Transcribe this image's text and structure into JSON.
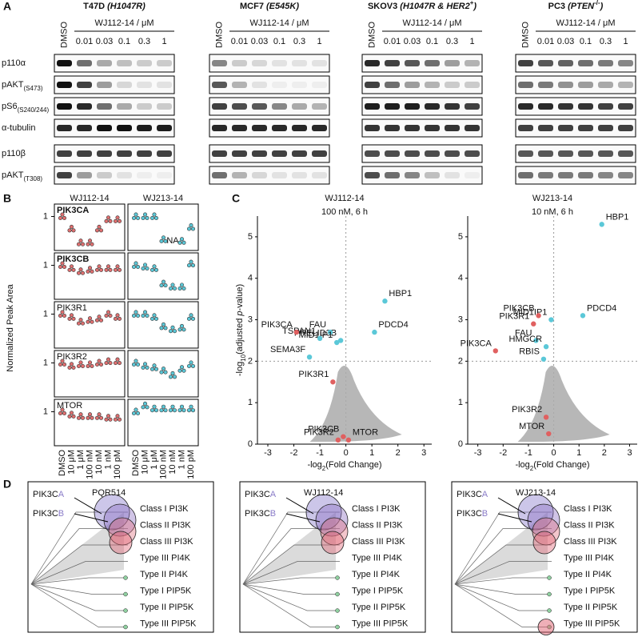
{
  "panel_a": {
    "label": "A",
    "treatment": "WJ112-14 / μM",
    "dmso": "DMSO",
    "doses": [
      "0.01",
      "0.03",
      "0.1",
      "0.3",
      "1"
    ],
    "proteins": [
      [
        {
          "text": "p110α"
        }
      ],
      [
        {
          "text": "pAKT"
        },
        {
          "text": "(S473)",
          "sub": true
        }
      ],
      [
        {
          "text": "pS6"
        },
        {
          "text": "(S240/244)",
          "sub": true
        }
      ],
      [
        {
          "text": "α-tubulin"
        }
      ],
      [
        {
          "text": "p110β"
        }
      ],
      [
        {
          "text": "pAKT"
        },
        {
          "text": "(T308)",
          "sub": true
        }
      ]
    ],
    "cell_lines": [
      {
        "title": [
          {
            "text": "T47D "
          },
          {
            "text": "(H1047R)",
            "italic": true
          }
        ],
        "band_intensity": [
          [
            1,
            0.6,
            0.35,
            0.25,
            0.2,
            0.2
          ],
          [
            1,
            0.8,
            0.4,
            0.15,
            0.1,
            0.1
          ],
          [
            1,
            0.9,
            0.6,
            0.35,
            0.2,
            0.2
          ],
          [
            0.9,
            0.9,
            1,
            1,
            0.95,
            0.95
          ],
          [
            0.8,
            0.8,
            0.8,
            0.8,
            0.8,
            0.8
          ],
          [
            0.8,
            0.4,
            0.2,
            0.1,
            0.05,
            0.05
          ]
        ]
      },
      {
        "title": [
          {
            "text": "MCF7 "
          },
          {
            "text": "(E545K)",
            "italic": true
          }
        ],
        "band_intensity": [
          [
            0.5,
            0.2,
            0.15,
            0.1,
            0.1,
            0.1
          ],
          [
            0.7,
            0.3,
            0.1,
            0.05,
            0.05,
            0.05
          ],
          [
            0.8,
            0.75,
            0.7,
            0.5,
            0.35,
            0.3
          ],
          [
            0.9,
            0.9,
            0.9,
            0.9,
            0.9,
            0.9
          ],
          [
            0.8,
            0.8,
            0.8,
            0.8,
            0.8,
            0.8
          ],
          [
            0.6,
            0.3,
            0.15,
            0.1,
            0.1,
            0.1
          ]
        ]
      },
      {
        "title": [
          {
            "text": "SKOV3 "
          },
          {
            "text": "(H1047R & HER2",
            "italic": true
          },
          {
            "text": "+",
            "sup": true
          },
          {
            "text": ")",
            "italic": true
          }
        ],
        "band_intensity": [
          [
            0.9,
            0.8,
            0.7,
            0.6,
            0.4,
            0.3
          ],
          [
            0.8,
            0.6,
            0.4,
            0.3,
            0.2,
            0.2
          ],
          [
            0.95,
            0.95,
            0.95,
            0.9,
            0.85,
            0.8
          ],
          [
            0.85,
            0.85,
            0.85,
            0.85,
            0.85,
            0.85
          ],
          [
            0.75,
            0.75,
            0.75,
            0.75,
            0.75,
            0.75
          ],
          [
            0.75,
            0.6,
            0.5,
            0.25,
            0.1,
            0.05
          ]
        ]
      },
      {
        "title": [
          {
            "text": "PC3 "
          },
          {
            "text": "(PTEN",
            "italic": true
          },
          {
            "text": "-/-",
            "sup": true
          },
          {
            "text": ")",
            "italic": true
          }
        ],
        "band_intensity": [
          [
            0.8,
            0.7,
            0.65,
            0.6,
            0.55,
            0.5
          ],
          [
            0.6,
            0.55,
            0.45,
            0.4,
            0.35,
            0.3
          ],
          [
            0.9,
            0.9,
            0.85,
            0.85,
            0.8,
            0.8
          ],
          [
            0.8,
            0.8,
            0.8,
            0.8,
            0.8,
            0.8
          ],
          [
            0.7,
            0.7,
            0.7,
            0.7,
            0.7,
            0.7
          ],
          [
            0.6,
            0.55,
            0.55,
            0.55,
            0.5,
            0.5
          ]
        ]
      }
    ]
  },
  "panel_b": {
    "label": "B",
    "ylabel": "Normalized Peak Area",
    "ylim": [
      0,
      1.3
    ],
    "yticks": [
      1
    ],
    "na_label": "NA",
    "categories": [
      "DMSO",
      "10 μM",
      "1 μM",
      "100 nM",
      "10 nM",
      "1 nM",
      "100 pM"
    ],
    "compounds": [
      {
        "name": "WJ112-14",
        "color": "#e07070"
      },
      {
        "name": "WJ213-14",
        "color": "#5bc8d8"
      }
    ],
    "genes": [
      {
        "name": "PIK3CA",
        "bold": true,
        "values": [
          [
            1,
            0.6,
            0.15,
            0.15,
            0.6,
            0.9,
            0.9
          ],
          [
            1,
            1,
            1,
            0.25,
            null,
            0.2,
            0.65
          ]
        ]
      },
      {
        "name": "PIK3CB",
        "bold": true,
        "values": [
          [
            1,
            0.9,
            0.8,
            0.85,
            0.9,
            0.9,
            0.9
          ],
          [
            1,
            0.95,
            0.9,
            0.4,
            0.3,
            0.3,
            1.05
          ]
        ]
      },
      {
        "name": "PIK3R1",
        "bold": false,
        "values": [
          [
            1,
            0.9,
            0.75,
            0.8,
            0.85,
            1,
            0.9
          ],
          [
            1,
            1,
            0.9,
            0.6,
            0.5,
            0.55,
            0.9
          ]
        ]
      },
      {
        "name": "PIK3R2",
        "bold": false,
        "values": [
          [
            1,
            0.9,
            0.95,
            0.95,
            1,
            1.05,
            1.05
          ],
          [
            1,
            0.9,
            0.85,
            0.75,
            0.6,
            0.8,
            0.95
          ]
        ]
      },
      {
        "name": "MTOR",
        "bold": false,
        "values": [
          [
            1,
            0.9,
            0.85,
            0.85,
            0.85,
            0.8,
            0.8
          ],
          [
            1,
            1.2,
            1.1,
            1.1,
            1.1,
            1.1,
            1.1
          ]
        ]
      }
    ]
  },
  "panel_c": {
    "label": "C",
    "xlabel": [
      {
        "text": "-log"
      },
      {
        "text": "2",
        "sub": true
      },
      {
        "text": "(Fold Change)"
      }
    ],
    "ylabel": [
      {
        "text": "-log"
      },
      {
        "text": "10",
        "sub": true
      },
      {
        "text": "(adjusted "
      },
      {
        "text": "p",
        "italic": true
      },
      {
        "text": "-value)"
      }
    ],
    "xlim": [
      -3.4,
      3.3
    ],
    "ylim": [
      0,
      5.5
    ],
    "xticks": [
      -3,
      -2,
      -1,
      0,
      1,
      2,
      3
    ],
    "yticks": [
      0,
      1,
      2,
      3,
      4,
      5
    ],
    "hline": 2,
    "vline": 0,
    "plots": [
      {
        "title": "WJ112-14",
        "subtitle": "100 nM, 6 h",
        "points": [
          {
            "name": "HBP1",
            "x": 1.5,
            "y": 3.45,
            "color": "#5bc8d8"
          },
          {
            "name": "PDCD4",
            "x": 1.1,
            "y": 2.7,
            "color": "#5bc8d8"
          },
          {
            "name": "PRELID3B",
            "x": -0.2,
            "y": 2.5,
            "color": "#5bc8d8"
          },
          {
            "name": "FAU",
            "x": -0.6,
            "y": 2.7,
            "color": "#5bc8d8"
          },
          {
            "name": "MID1IP1",
            "x": -0.35,
            "y": 2.45,
            "color": "#5bc8d8"
          },
          {
            "name": "TSPAN1",
            "x": -1.0,
            "y": 2.55,
            "color": "#5bc8d8"
          },
          {
            "name": "PIK3CA",
            "x": -1.9,
            "y": 2.7,
            "color": "#e06060"
          },
          {
            "name": "SEMA3F",
            "x": -1.4,
            "y": 2.1,
            "color": "#5bc8d8"
          },
          {
            "name": "PIK3R1",
            "x": -0.5,
            "y": 1.5,
            "color": "#e06060"
          },
          {
            "name": "PIK3CB",
            "x": -0.1,
            "y": 0.18,
            "color": "#e06060"
          },
          {
            "name": "PIK3R2",
            "x": -0.3,
            "y": 0.1,
            "color": "#e06060"
          },
          {
            "name": "MTOR",
            "x": 0.1,
            "y": 0.1,
            "color": "#e06060"
          }
        ]
      },
      {
        "title": "WJ213-14",
        "subtitle": "10 nM, 6 h",
        "points": [
          {
            "name": "HBP1",
            "x": 1.9,
            "y": 5.3,
            "color": "#5bc8d8"
          },
          {
            "name": "PDCD4",
            "x": 1.15,
            "y": 3.1,
            "color": "#5bc8d8"
          },
          {
            "name": "MID1IP1",
            "x": -0.1,
            "y": 3.0,
            "color": "#5bc8d8"
          },
          {
            "name": "PIK3CB",
            "x": -0.6,
            "y": 3.1,
            "color": "#e06060"
          },
          {
            "name": "PIK3R1",
            "x": -0.8,
            "y": 2.9,
            "color": "#e06060"
          },
          {
            "name": "FAU",
            "x": -0.7,
            "y": 2.5,
            "color": "#5bc8d8"
          },
          {
            "name": "HMGCR",
            "x": -0.3,
            "y": 2.35,
            "color": "#5bc8d8"
          },
          {
            "name": "RBIS",
            "x": -0.4,
            "y": 2.05,
            "color": "#5bc8d8"
          },
          {
            "name": "PIK3CA",
            "x": -2.3,
            "y": 2.25,
            "color": "#e06060"
          },
          {
            "name": "PIK3R2",
            "x": -0.3,
            "y": 0.65,
            "color": "#e06060"
          },
          {
            "name": "MTOR",
            "x": -0.2,
            "y": 0.25,
            "color": "#e06060"
          }
        ]
      }
    ]
  },
  "panel_d": {
    "label": "D",
    "genes": [
      [
        {
          "text": "PIK3C"
        },
        {
          "text": "A",
          "color": "#8a7cc8"
        }
      ],
      [
        {
          "text": "PIK3C"
        },
        {
          "text": "B",
          "color": "#8a7cc8"
        }
      ]
    ],
    "compounds": [
      "PQR514",
      "WJ112-14",
      "WJ213-14"
    ],
    "classes": [
      "Class I PI3K",
      "Class II PI3K",
      "Class III PI3K",
      "Type III PI4K",
      "Type II PI4K",
      "Type I PIP5K",
      "Type II PIP5K",
      "Type III PIP5K"
    ]
  }
}
